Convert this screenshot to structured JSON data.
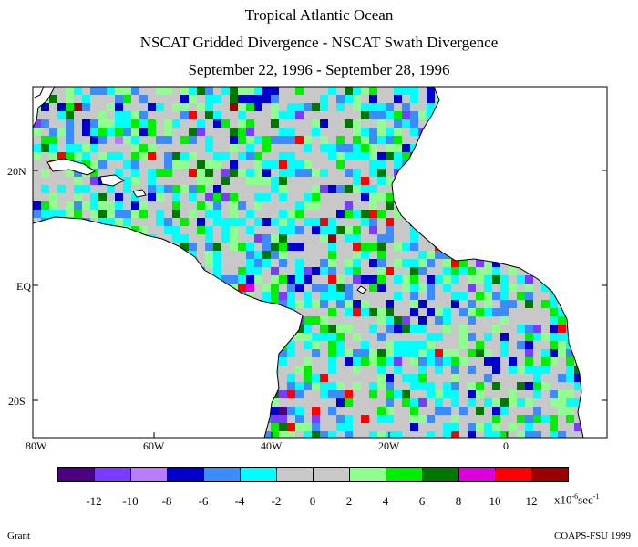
{
  "title": {
    "line1": "Tropical Atlantic Ocean",
    "line2": "NSCAT Gridded Divergence - NSCAT Swath Divergence",
    "line3": "September 22, 1996 - September 28, 1996"
  },
  "map": {
    "lat_labels": [
      "20N",
      "EQ",
      "20S"
    ],
    "lon_labels": [
      "80W",
      "60W",
      "40W",
      "20W",
      "0"
    ],
    "land_color": "#ffffff",
    "coast_color": "#000000"
  },
  "colorbar": {
    "colors": [
      "#4b0082",
      "#7b3cff",
      "#b87cff",
      "#0000cc",
      "#3c8cff",
      "#00ffff",
      "#c8c8c8",
      "#c8c8c8",
      "#90ff90",
      "#00ee00",
      "#007700",
      "#dd00dd",
      "#ff0000",
      "#990000"
    ],
    "tick_labels": [
      "-12",
      "-10",
      "-8",
      "-6",
      "-4",
      "-2",
      "0",
      "2",
      "4",
      "6",
      "8",
      "10",
      "12"
    ],
    "units_prefix": "x10",
    "units_exp": "-6",
    "units_suffix": "sec",
    "units_exp2": "-1"
  },
  "footer": {
    "left": "Grant",
    "right": "COAPS-FSU 1999"
  }
}
